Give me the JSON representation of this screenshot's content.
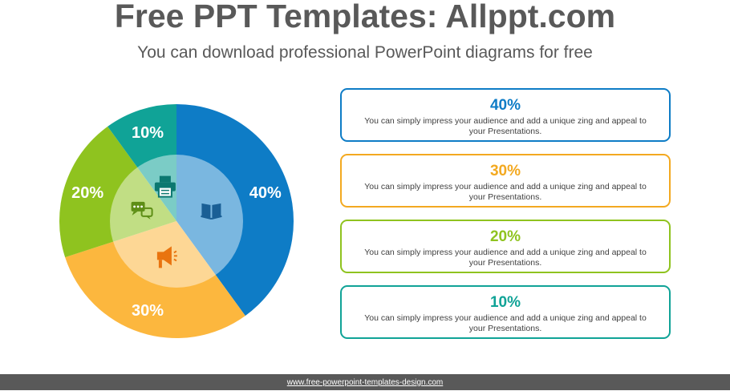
{
  "header": {
    "title": "Free PPT Templates: Allppt.com",
    "subtitle": "You can download professional PowerPoint diagrams for free"
  },
  "chart_data": {
    "type": "pie",
    "segments": [
      {
        "label": "40%",
        "value": 40,
        "color": "#0e7cc6",
        "icon": "book-icon"
      },
      {
        "label": "30%",
        "value": 30,
        "color": "#fcb73e",
        "icon": "megaphone-icon"
      },
      {
        "label": "20%",
        "value": 20,
        "color": "#8fc31f",
        "icon": "chat-icon"
      },
      {
        "label": "10%",
        "value": 10,
        "color": "#10a397",
        "icon": "printer-icon"
      }
    ]
  },
  "cards": [
    {
      "value": "40%",
      "color": "#0e7cc6",
      "text": "You can simply impress your audience and add a unique zing and appeal to your Presentations."
    },
    {
      "value": "30%",
      "color": "#f3a920",
      "text": "You can simply impress your audience and add a unique zing and appeal to your Presentations."
    },
    {
      "value": "20%",
      "color": "#8fc31f",
      "text": "You can simply impress your audience and add a unique zing and appeal to your Presentations."
    },
    {
      "value": "10%",
      "color": "#10a397",
      "text": "You can simply impress your audience and add a unique zing and appeal to your Presentations."
    }
  ],
  "footer": {
    "url": "www.free-powerpoint-templates-design.com"
  }
}
